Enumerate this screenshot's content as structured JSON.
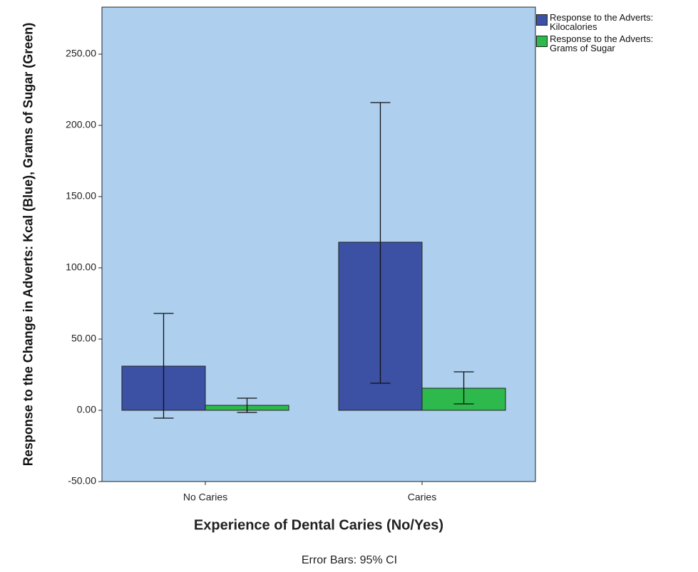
{
  "chart_data": {
    "type": "bar",
    "x_label": "Experience of Dental Caries (No/Yes)",
    "y_label": "Response to the Change in Adverts: Kcal (Blue), Grams of Sugar (Green)",
    "note": "Error Bars: 95% CI",
    "categories": [
      "No Caries",
      "Caries"
    ],
    "series": [
      {
        "name": "Response to the Adverts: Kilocalories",
        "color": "#3c51a3",
        "values": [
          31,
          118
        ],
        "ci_low": [
          -5.5,
          19
        ],
        "ci_high": [
          68,
          216
        ]
      },
      {
        "name": "Response to the Adverts: Grams of Sugar",
        "color": "#2db94b",
        "values": [
          3.5,
          15.5
        ],
        "ci_low": [
          -1.5,
          4.5
        ],
        "ci_high": [
          8.5,
          27
        ]
      }
    ],
    "ylim": [
      -50,
      283
    ],
    "yticks": [
      {
        "value": -50,
        "label": "-50.00"
      },
      {
        "value": 0,
        "label": "0.00"
      },
      {
        "value": 50,
        "label": "50.00"
      },
      {
        "value": 100,
        "label": "100.00"
      },
      {
        "value": 150,
        "label": "150.00"
      },
      {
        "value": 200,
        "label": "200.00"
      },
      {
        "value": 250,
        "label": "250.00"
      }
    ],
    "plot_background": "#aed0ee",
    "legend": "right"
  }
}
